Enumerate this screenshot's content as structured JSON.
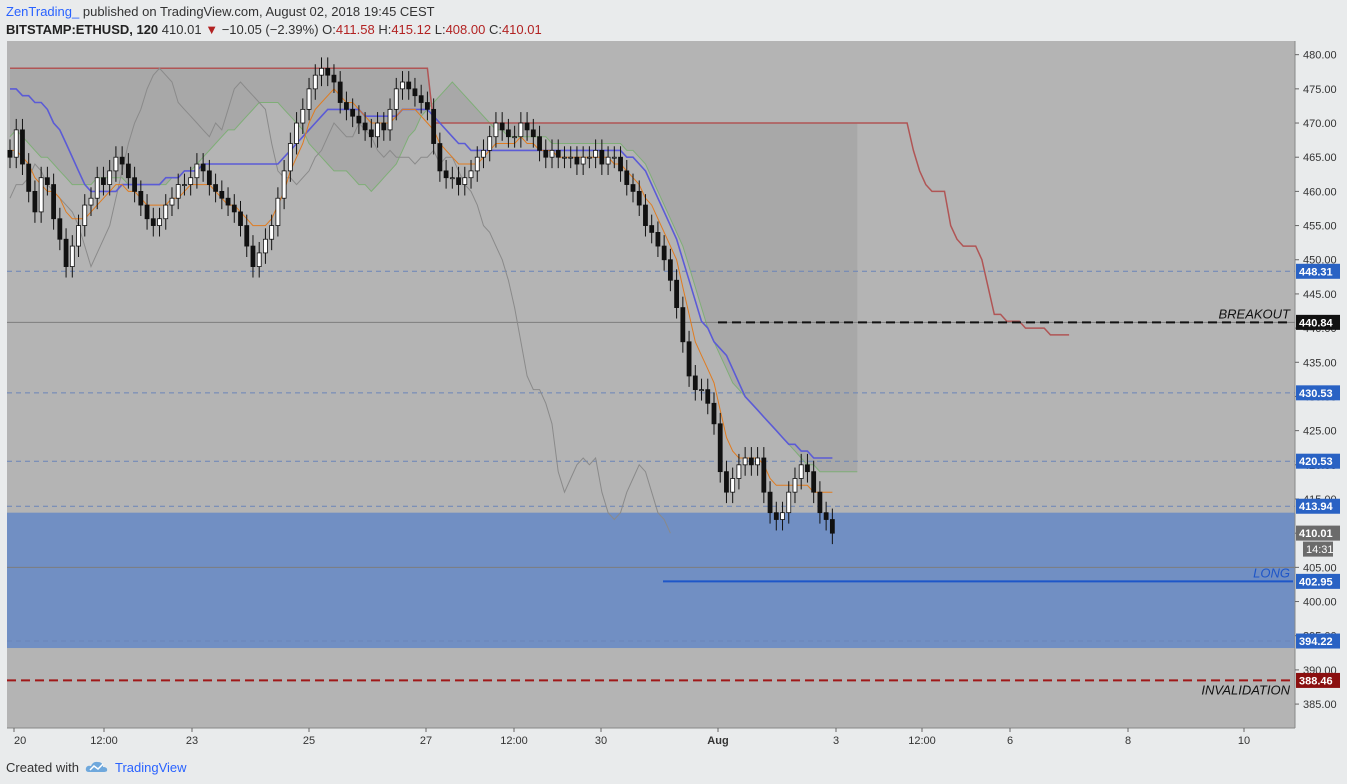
{
  "header": {
    "author": "ZenTrading_",
    "published": "published on TradingView.com, August 02, 2018 19:45 CEST",
    "symbol": "BITSTAMP:ETHUSD, 120",
    "last": "410.01",
    "change": "−10.05 (−2.39%)",
    "o_label": "O:",
    "o": "411.58",
    "h_label": "H:",
    "h": "415.12",
    "l_label": "L:",
    "l": "408.00",
    "c_label": "C:",
    "c": "410.01"
  },
  "footer": {
    "created_with": "Created with",
    "brand": "TradingView"
  },
  "colors": {
    "bg": "#b4b4b4",
    "blue_zone": "#6b8cc4",
    "tenkan": "#e07b1f",
    "kijun": "#5b5bd6",
    "span_a": "#7fae77",
    "span_b": "#b05555",
    "lagging": "#8a8a8a",
    "candle": "#111111",
    "invalidation": "#a01818",
    "long": "#1e56c8"
  },
  "chart_data": {
    "type": "candlestick",
    "symbol": "BITSTAMP:ETHUSD",
    "interval": "120",
    "ylim": [
      381.5,
      482
    ],
    "y_ticks": [
      385,
      390,
      395,
      400,
      405,
      410,
      415,
      420,
      425,
      430,
      435,
      440,
      445,
      450,
      455,
      460,
      465,
      470,
      475,
      480
    ],
    "x_labels": [
      "20",
      "12:00",
      "23",
      "25",
      "27",
      "12:00",
      "30",
      "Aug",
      "3",
      "12:00",
      "6",
      "8",
      "10"
    ],
    "price_labels": [
      {
        "value": 448.31,
        "text": "448.31",
        "kind": "blue"
      },
      {
        "value": 440.84,
        "text": "440.84",
        "kind": "black"
      },
      {
        "value": 430.53,
        "text": "430.53",
        "kind": "blue"
      },
      {
        "value": 420.53,
        "text": "420.53",
        "kind": "blue"
      },
      {
        "value": 413.94,
        "text": "413.94",
        "kind": "blue"
      },
      {
        "value": 410.01,
        "text": "410.01",
        "kind": "last"
      },
      {
        "value": 402.95,
        "text": "402.95",
        "kind": "blue"
      },
      {
        "value": 394.22,
        "text": "394.22",
        "kind": "blue"
      },
      {
        "value": 388.46,
        "text": "388.46",
        "kind": "red"
      }
    ],
    "countdown": "14:31",
    "annotations": {
      "breakout": {
        "text": "BREAKOUT",
        "value": 440.84
      },
      "long": {
        "text": "LONG",
        "value": 402.95
      },
      "invalidation": {
        "text": "INVALIDATION",
        "value": 388.46
      }
    },
    "zone": {
      "top": 413.0,
      "bottom": 393.2
    },
    "dashed_levels": [
      448.31,
      430.53,
      420.53,
      413.94,
      394.22
    ],
    "solid_gray_levels": [
      440.84,
      405.0
    ],
    "closes": [
      465,
      469,
      464,
      460,
      457,
      462,
      461,
      456,
      453,
      449,
      452,
      455,
      458,
      459,
      462,
      461,
      463,
      465,
      464,
      462,
      460,
      458,
      456,
      455,
      456,
      458,
      459,
      461,
      461,
      462,
      464,
      463,
      461,
      460,
      459,
      458,
      457,
      455,
      452,
      449,
      451,
      453,
      455,
      459,
      463,
      467,
      470,
      472,
      475,
      477,
      478,
      477,
      476,
      473,
      472,
      471,
      470,
      469,
      468,
      470,
      469,
      472,
      475,
      476,
      475,
      474,
      473,
      472,
      467,
      463,
      462,
      462,
      461,
      462,
      463,
      465,
      466,
      468,
      470,
      469,
      468,
      468,
      470,
      469,
      468,
      466,
      465,
      466,
      465,
      465,
      465,
      464,
      465,
      465,
      466,
      464,
      465,
      465,
      463,
      461,
      460,
      458,
      455,
      454,
      452,
      450,
      447,
      443,
      438,
      433,
      431,
      431,
      429,
      426,
      419,
      416,
      418,
      420,
      421,
      420,
      421,
      416,
      413,
      412,
      413,
      416,
      418,
      420,
      419,
      416,
      413,
      412,
      410
    ],
    "tenkan": [
      466,
      466,
      465,
      464,
      462,
      461,
      460,
      460,
      459,
      457,
      456,
      456,
      456,
      457,
      458,
      459,
      460,
      461,
      461,
      460,
      460,
      459,
      458,
      458,
      458,
      458,
      459,
      459,
      460,
      461,
      461,
      461,
      461,
      460,
      459,
      458,
      458,
      457,
      456,
      455,
      455,
      455,
      456,
      458,
      460,
      463,
      465,
      467,
      470,
      472,
      473,
      474,
      475,
      474,
      473,
      473,
      472,
      471,
      470,
      470,
      470,
      470,
      471,
      472,
      472,
      472,
      471,
      470,
      469,
      467,
      466,
      465,
      464,
      464,
      464,
      464,
      465,
      466,
      467,
      467,
      467,
      467,
      468,
      467,
      467,
      466,
      466,
      466,
      465,
      465,
      465,
      465,
      465,
      465,
      465,
      465,
      465,
      464,
      464,
      463,
      462,
      461,
      459,
      458,
      456,
      454,
      452,
      450,
      446,
      442,
      438,
      436,
      434,
      432,
      428,
      424,
      422,
      421,
      421,
      421,
      421,
      420,
      418,
      417,
      417,
      417,
      417,
      417,
      417,
      416,
      416,
      416,
      416
    ],
    "kijun": [
      475,
      475,
      474,
      474,
      473,
      473,
      472,
      470,
      469,
      467,
      465,
      463,
      461,
      460,
      460,
      460,
      460,
      460,
      461,
      461,
      461,
      461,
      461,
      461,
      461,
      462,
      462,
      462,
      463,
      463,
      463,
      464,
      464,
      464,
      464,
      464,
      464,
      464,
      464,
      464,
      464,
      464,
      464,
      464,
      465,
      466,
      467,
      468,
      469,
      470,
      471,
      472,
      472,
      472,
      472,
      472,
      472,
      471,
      471,
      471,
      471,
      471,
      471,
      472,
      472,
      472,
      472,
      472,
      471,
      470,
      469,
      468,
      467,
      467,
      466,
      466,
      466,
      466,
      466,
      466,
      466,
      466,
      466,
      466,
      466,
      466,
      466,
      466,
      466,
      466,
      466,
      466,
      466,
      466,
      466,
      466,
      466,
      466,
      466,
      465,
      465,
      464,
      463,
      461,
      459,
      457,
      455,
      453,
      450,
      447,
      444,
      441,
      440,
      438,
      437,
      436,
      434,
      432,
      430,
      429,
      428,
      427,
      426,
      425,
      424,
      423,
      423,
      422,
      422,
      421,
      421,
      421,
      421
    ],
    "span_a": [
      468,
      469,
      468,
      467,
      466,
      465,
      465,
      464,
      463,
      462,
      461,
      461,
      461,
      461,
      462,
      462,
      462,
      462,
      462,
      461,
      461,
      461,
      461,
      461,
      461,
      461,
      462,
      462,
      463,
      463,
      464,
      465,
      466,
      467,
      468,
      469,
      469,
      470,
      471,
      472,
      473,
      473,
      473,
      473,
      472,
      471,
      470,
      469,
      467,
      466,
      465,
      464,
      463,
      463,
      463,
      462,
      461,
      461,
      460,
      461,
      462,
      463,
      464,
      466,
      468,
      469,
      471,
      472,
      473,
      474,
      475,
      476,
      475,
      474,
      473,
      472,
      471,
      470,
      469,
      469,
      468,
      468,
      468,
      468,
      468,
      468,
      468,
      467,
      467,
      467,
      467,
      467,
      467,
      467,
      467,
      467,
      467,
      467,
      467,
      466,
      466,
      465,
      464,
      462,
      460,
      458,
      456,
      454,
      452,
      449,
      446,
      443,
      440,
      438,
      436,
      434,
      432,
      431,
      430,
      429,
      428,
      427,
      426,
      425,
      424,
      423,
      422,
      421,
      420,
      420,
      419,
      419,
      419,
      419,
      419,
      419,
      419
    ],
    "span_b": [
      478,
      478,
      478,
      478,
      478,
      478,
      478,
      478,
      478,
      478,
      478,
      478,
      478,
      478,
      478,
      478,
      478,
      478,
      478,
      478,
      478,
      478,
      478,
      478,
      478,
      478,
      478,
      478,
      478,
      478,
      478,
      478,
      478,
      478,
      478,
      478,
      478,
      478,
      478,
      478,
      478,
      478,
      478,
      478,
      478,
      478,
      478,
      478,
      478,
      478,
      478,
      478,
      478,
      478,
      478,
      478,
      478,
      478,
      478,
      478,
      478,
      478,
      478,
      478,
      478,
      478,
      478,
      478,
      470,
      470,
      470,
      470,
      470,
      470,
      470,
      470,
      470,
      470,
      470,
      470,
      470,
      470,
      470,
      470,
      470,
      470,
      470,
      470,
      470,
      470,
      470,
      470,
      470,
      470,
      470,
      470,
      470,
      470,
      470,
      470,
      470,
      470,
      470,
      470,
      470,
      470,
      470,
      470,
      470,
      470,
      470,
      470,
      470,
      470,
      470,
      470,
      470,
      470,
      470,
      470,
      470,
      470,
      470,
      470,
      470,
      470,
      470,
      470,
      470,
      470,
      470,
      470,
      470,
      470,
      470,
      470,
      470,
      470,
      470,
      470,
      470,
      470,
      470,
      470,
      470,
      466,
      463,
      461,
      460,
      460,
      460,
      455,
      453,
      452,
      452,
      452,
      450,
      446,
      442,
      442,
      441,
      441,
      441,
      440,
      440,
      440,
      440,
      439,
      439,
      439,
      439
    ]
  }
}
